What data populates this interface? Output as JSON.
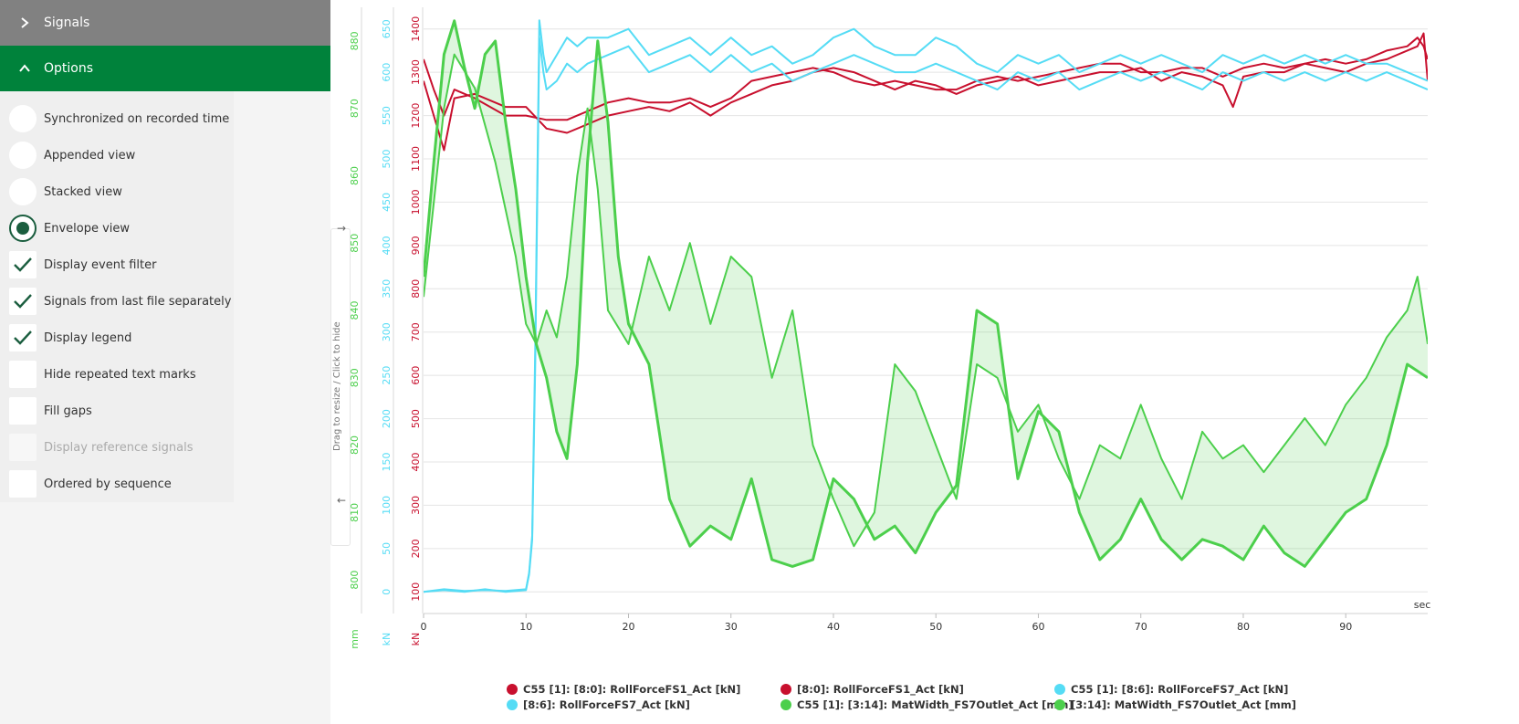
{
  "sidebar": {
    "signals_label": "Signals",
    "options_label": "Options",
    "options": [
      {
        "label": "Synchronized on recorded time",
        "type": "radio",
        "checked": false,
        "disabled": false
      },
      {
        "label": "Appended view",
        "type": "radio",
        "checked": false,
        "disabled": false
      },
      {
        "label": "Stacked view",
        "type": "radio",
        "checked": false,
        "disabled": false
      },
      {
        "label": "Envelope view",
        "type": "radio",
        "checked": true,
        "disabled": false
      },
      {
        "label": "Display event filter",
        "type": "checkbox",
        "checked": true,
        "disabled": false
      },
      {
        "label": "Signals from last file separately",
        "type": "checkbox",
        "checked": true,
        "disabled": false
      },
      {
        "label": "Display legend",
        "type": "checkbox",
        "checked": true,
        "disabled": false
      },
      {
        "label": "Hide repeated text marks",
        "type": "checkbox",
        "checked": false,
        "disabled": false
      },
      {
        "label": "Fill gaps",
        "type": "checkbox",
        "checked": false,
        "disabled": false
      },
      {
        "label": "Display reference signals",
        "type": "checkbox",
        "checked": false,
        "disabled": true
      },
      {
        "label": "Ordered by sequence",
        "type": "checkbox",
        "checked": false,
        "disabled": false
      }
    ]
  },
  "splitter": {
    "label": "Drag to resize / Click to hide",
    "arrow_right": "→",
    "arrow_left": "←"
  },
  "chart_data": {
    "type": "line",
    "x_unit": "sec",
    "xlim": [
      0,
      98
    ],
    "x_ticks": [
      0,
      10,
      20,
      30,
      40,
      50,
      60,
      70,
      80,
      90
    ],
    "axes": [
      {
        "id": "green",
        "unit": "mm",
        "color": "#4ccf4c",
        "ylim": [
          795,
          885
        ],
        "ticks": [
          800,
          810,
          820,
          830,
          840,
          850,
          860,
          870,
          880
        ]
      },
      {
        "id": "cyan",
        "unit": "kN",
        "color": "#55dcf5",
        "ylim": [
          -25,
          675
        ],
        "ticks": [
          0,
          50,
          100,
          150,
          200,
          250,
          300,
          350,
          400,
          450,
          500,
          550,
          600,
          650
        ]
      },
      {
        "id": "red",
        "unit": "kN",
        "color": "#c8102e",
        "ylim": [
          50,
          1450
        ],
        "ticks": [
          100,
          200,
          300,
          400,
          500,
          600,
          700,
          800,
          900,
          1000,
          1100,
          1200,
          1300,
          1400
        ]
      }
    ],
    "series": [
      {
        "name": "C55 [1]: [8:0]: RollForceFS1_Act [kN]",
        "color": "#c8102e",
        "axis": "red",
        "x": [
          0,
          1,
          2,
          3,
          5,
          8,
          10,
          12,
          14,
          16,
          18,
          20,
          22,
          24,
          26,
          28,
          30,
          32,
          34,
          36,
          38,
          40,
          42,
          44,
          46,
          48,
          50,
          52,
          54,
          56,
          58,
          60,
          62,
          64,
          66,
          68,
          70,
          72,
          74,
          76,
          78,
          79,
          80,
          82,
          84,
          86,
          88,
          90,
          92,
          94,
          96,
          97,
          97.6,
          98
        ],
        "y": [
          1280,
          1200,
          1120,
          1240,
          1250,
          1220,
          1220,
          1170,
          1160,
          1180,
          1200,
          1210,
          1220,
          1210,
          1230,
          1200,
          1230,
          1250,
          1270,
          1280,
          1300,
          1310,
          1300,
          1280,
          1260,
          1280,
          1270,
          1250,
          1270,
          1280,
          1290,
          1270,
          1280,
          1290,
          1300,
          1300,
          1310,
          1280,
          1300,
          1290,
          1270,
          1220,
          1290,
          1300,
          1300,
          1320,
          1310,
          1300,
          1320,
          1330,
          1350,
          1360,
          1390,
          1280
        ]
      },
      {
        "name": "[8:0]: RollForceFS1_Act [kN]",
        "color": "#c8102e",
        "axis": "red",
        "x": [
          0,
          1,
          2,
          3,
          5,
          8,
          10,
          12,
          14,
          16,
          18,
          20,
          22,
          24,
          26,
          28,
          30,
          32,
          34,
          36,
          38,
          40,
          42,
          44,
          46,
          48,
          50,
          52,
          54,
          56,
          58,
          60,
          62,
          64,
          66,
          68,
          70,
          72,
          74,
          76,
          78,
          80,
          82,
          84,
          86,
          88,
          90,
          92,
          94,
          96,
          97,
          97.6,
          98
        ],
        "y": [
          1330,
          1260,
          1200,
          1260,
          1240,
          1200,
          1200,
          1190,
          1190,
          1210,
          1230,
          1240,
          1230,
          1230,
          1240,
          1220,
          1240,
          1280,
          1290,
          1300,
          1310,
          1300,
          1280,
          1270,
          1280,
          1270,
          1260,
          1260,
          1280,
          1290,
          1280,
          1290,
          1300,
          1310,
          1320,
          1320,
          1300,
          1300,
          1310,
          1310,
          1290,
          1310,
          1320,
          1310,
          1320,
          1330,
          1320,
          1330,
          1350,
          1360,
          1380,
          1360,
          1330
        ]
      },
      {
        "name": "C55 [1]: [8:6]: RollForceFS7_Act [kN]",
        "color": "#55dcf5",
        "axis": "cyan",
        "x": [
          0,
          2,
          4,
          6,
          8,
          10,
          10.3,
          10.6,
          10.9,
          11.3,
          11.7,
          12,
          13,
          14,
          15,
          16,
          18,
          20,
          22,
          24,
          26,
          28,
          30,
          32,
          34,
          36,
          38,
          40,
          42,
          44,
          46,
          48,
          50,
          52,
          54,
          56,
          58,
          60,
          62,
          64,
          66,
          68,
          70,
          72,
          74,
          76,
          78,
          80,
          82,
          84,
          86,
          88,
          90,
          92,
          94,
          96,
          98
        ],
        "y": [
          0,
          2,
          0,
          3,
          0,
          2,
          20,
          60,
          260,
          640,
          600,
          580,
          590,
          610,
          600,
          610,
          620,
          630,
          600,
          610,
          620,
          600,
          620,
          600,
          610,
          590,
          600,
          610,
          620,
          610,
          600,
          600,
          610,
          600,
          590,
          580,
          600,
          590,
          600,
          580,
          590,
          600,
          590,
          600,
          590,
          580,
          600,
          590,
          600,
          590,
          600,
          590,
          600,
          590,
          600,
          590,
          580
        ]
      },
      {
        "name": "[8:6]: RollForceFS7_Act [kN]",
        "color": "#55dcf5",
        "axis": "cyan",
        "x": [
          0,
          2,
          4,
          6,
          8,
          10,
          10.3,
          10.6,
          10.9,
          11.3,
          11.7,
          12,
          13,
          14,
          15,
          16,
          18,
          20,
          22,
          24,
          26,
          28,
          30,
          32,
          34,
          36,
          38,
          40,
          42,
          44,
          46,
          48,
          50,
          52,
          54,
          56,
          58,
          60,
          62,
          64,
          66,
          68,
          70,
          72,
          74,
          76,
          78,
          80,
          82,
          84,
          86,
          88,
          90,
          92,
          94,
          96,
          98
        ],
        "y": [
          0,
          3,
          1,
          2,
          1,
          3,
          22,
          65,
          280,
          660,
          620,
          600,
          620,
          640,
          630,
          640,
          640,
          650,
          620,
          630,
          640,
          620,
          640,
          620,
          630,
          610,
          620,
          640,
          650,
          630,
          620,
          620,
          640,
          630,
          610,
          600,
          620,
          610,
          620,
          600,
          610,
          620,
          610,
          620,
          610,
          600,
          620,
          610,
          620,
          610,
          620,
          610,
          620,
          610,
          610,
          600,
          590
        ]
      },
      {
        "name": "C55 [1]: [3:14]: MatWidth_FS7Outlet_Act [mm]",
        "color": "#4ccf4c",
        "axis": "green",
        "x": [
          0,
          2,
          3,
          5,
          7,
          9,
          10,
          11,
          12,
          13,
          14,
          15,
          16,
          17,
          18,
          20,
          22,
          24,
          26,
          28,
          30,
          32,
          34,
          36,
          38,
          40,
          42,
          44,
          46,
          48,
          50,
          52,
          54,
          56,
          58,
          60,
          62,
          64,
          66,
          68,
          70,
          72,
          74,
          76,
          78,
          80,
          82,
          84,
          86,
          88,
          90,
          92,
          94,
          96,
          97,
          98
        ],
        "y": [
          842,
          870,
          878,
          873,
          862,
          848,
          838,
          835,
          840,
          836,
          845,
          860,
          870,
          858,
          840,
          835,
          848,
          840,
          850,
          838,
          848,
          845,
          830,
          840,
          820,
          812,
          805,
          810,
          832,
          828,
          820,
          812,
          832,
          830,
          822,
          826,
          818,
          812,
          820,
          818,
          826,
          818,
          812,
          822,
          818,
          820,
          816,
          820,
          824,
          820,
          826,
          830,
          836,
          840,
          845,
          835
        ]
      },
      {
        "name": "[3:14]: MatWidth_FS7Outlet_Act [mm]",
        "color": "#4ccf4c",
        "axis": "green",
        "x": [
          0,
          1,
          2,
          3,
          4,
          5,
          6,
          7,
          8,
          9,
          10,
          11,
          12,
          13,
          14,
          15,
          16,
          17,
          18,
          19,
          20,
          22,
          24,
          26,
          28,
          30,
          32,
          34,
          36,
          38,
          40,
          42,
          44,
          46,
          48,
          50,
          52,
          54,
          56,
          58,
          60,
          62,
          64,
          66,
          68,
          70,
          72,
          74,
          76,
          78,
          80,
          82,
          84,
          86,
          88,
          90,
          92,
          94,
          96,
          98
        ],
        "y": [
          845,
          862,
          878,
          883,
          876,
          870,
          878,
          880,
          868,
          858,
          845,
          835,
          830,
          822,
          818,
          832,
          862,
          880,
          868,
          848,
          838,
          832,
          812,
          805,
          808,
          806,
          815,
          803,
          802,
          803,
          815,
          812,
          806,
          808,
          804,
          810,
          814,
          840,
          838,
          815,
          825,
          822,
          810,
          803,
          806,
          812,
          806,
          803,
          806,
          805,
          803,
          808,
          804,
          802,
          806,
          810,
          812,
          820,
          832,
          830
        ]
      }
    ],
    "envelope_series": "[3:14]: MatWidth_FS7Outlet_Act [mm]",
    "grid": true,
    "legend_position": "bottom"
  }
}
